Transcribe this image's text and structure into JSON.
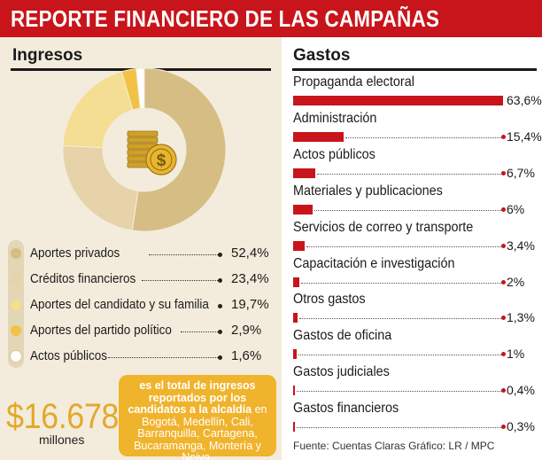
{
  "header": {
    "title": "REPORTE FINANCIERO DE LAS CAMPAÑAS"
  },
  "ingresos": {
    "title": "Ingresos",
    "total": "$16.678",
    "total_unit": "millones",
    "note_bold": "es el total de ingresos reportados por los candidatos a la alcaldía",
    "note_rest": "en Bogotá, Medellín, Cali, Barranquilla, Cartagena, Bucaramanga, Montería y Neiva."
  },
  "gastos": {
    "title": "Gastos"
  },
  "source": "Fuente: Cuentas Claras  Gráfico: LR / MPC",
  "chart_data": [
    {
      "type": "pie",
      "title": "Ingresos",
      "categories": [
        "Aportes privados",
        "Créditos financieros",
        "Aportes del candidato y su familia",
        "Aportes del partido político",
        "Actos públicos"
      ],
      "values": [
        52.4,
        23.4,
        19.7,
        2.9,
        1.6
      ],
      "labels": [
        "52,4%",
        "23,4%",
        "19,7%",
        "2,9%",
        "1,6%"
      ],
      "colors": [
        "#d6bd83",
        "#e6d3a9",
        "#f4de93",
        "#f1c246",
        "#ffffff"
      ]
    },
    {
      "type": "bar",
      "title": "Gastos",
      "categories": [
        "Propaganda electoral",
        "Administración",
        "Actos públicos",
        "Materiales y publicaciones",
        "Servicios de correo y transporte",
        "Capacitación e investigación",
        "Otros gastos",
        "Gastos de oficina",
        "Gastos judiciales",
        "Gastos financieros"
      ],
      "values": [
        63.6,
        15.4,
        6.7,
        6,
        3.4,
        2,
        1.3,
        1,
        0.4,
        0.3
      ],
      "labels": [
        "63,6%",
        "15,4%",
        "6,7%",
        "6%",
        "3,4%",
        "2%",
        "1,3%",
        "1%",
        "0,4%",
        "0,3%"
      ],
      "color": "#c8141b",
      "ylim": [
        0,
        63.6
      ]
    }
  ]
}
